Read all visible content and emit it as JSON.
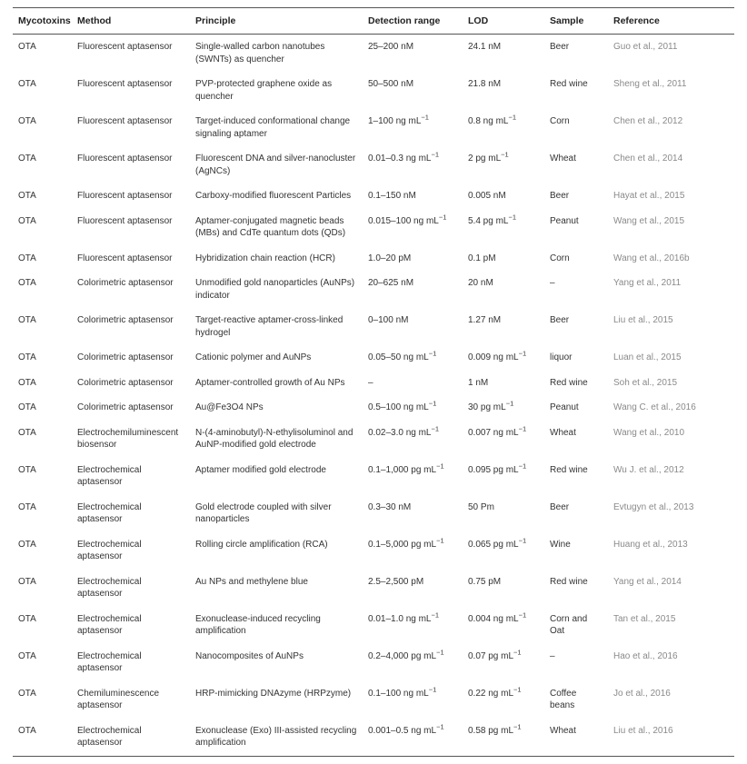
{
  "table": {
    "columns": [
      "Mycotoxins",
      "Method",
      "Principle",
      "Detection range",
      "LOD",
      "Sample",
      "Reference"
    ],
    "rows": [
      {
        "mycotoxin": "OTA",
        "method": "Fluorescent aptasensor",
        "principle": "Single-walled carbon nanotubes (SWNTs) as quencher",
        "range": "25–200 nM",
        "lod": "24.1 nM",
        "sample": "Beer",
        "ref": "Guo et al., 2011"
      },
      {
        "mycotoxin": "OTA",
        "method": "Fluorescent aptasensor",
        "principle": "PVP-protected graphene oxide as quencher",
        "range": "50–500 nM",
        "lod": "21.8 nM",
        "sample": "Red wine",
        "ref": "Sheng et al., 2011"
      },
      {
        "mycotoxin": "OTA",
        "method": "Fluorescent aptasensor",
        "principle": "Target-induced conformational change signaling aptamer",
        "range": "1–100 ng mL⁻¹",
        "lod": "0.8 ng mL⁻¹",
        "sample": "Corn",
        "ref": "Chen et al., 2012"
      },
      {
        "mycotoxin": "OTA",
        "method": "Fluorescent aptasensor",
        "principle": "Fluorescent DNA and silver-nanocluster (AgNCs)",
        "range": "0.01–0.3 ng mL⁻¹",
        "lod": "2 pg mL⁻¹",
        "sample": "Wheat",
        "ref": "Chen et al., 2014"
      },
      {
        "mycotoxin": "OTA",
        "method": "Fluorescent aptasensor",
        "principle": "Carboxy-modified fluorescent Particles",
        "range": "0.1–150 nM",
        "lod": "0.005 nM",
        "sample": "Beer",
        "ref": "Hayat et al., 2015"
      },
      {
        "mycotoxin": "OTA",
        "method": "Fluorescent aptasensor",
        "principle": "Aptamer-conjugated magnetic beads (MBs) and CdTe quantum dots (QDs)",
        "range": "0.015–100 ng mL⁻¹",
        "lod": "5.4 pg mL⁻¹",
        "sample": "Peanut",
        "ref": "Wang et al., 2015"
      },
      {
        "mycotoxin": "OTA",
        "method": "Fluorescent aptasensor",
        "principle": "Hybridization chain reaction (HCR)",
        "range": "1.0–20 pM",
        "lod": "0.1 pM",
        "sample": "Corn",
        "ref": "Wang et al., 2016b"
      },
      {
        "mycotoxin": "OTA",
        "method": "Colorimetric aptasensor",
        "principle": "Unmodified gold nanoparticles (AuNPs) indicator",
        "range": "20–625 nM",
        "lod": "20 nM",
        "sample": "–",
        "ref": "Yang et al., 2011"
      },
      {
        "mycotoxin": "OTA",
        "method": "Colorimetric aptasensor",
        "principle": "Target-reactive aptamer-cross-linked hydrogel",
        "range": "0–100 nM",
        "lod": "1.27 nM",
        "sample": "Beer",
        "ref": "Liu et al., 2015"
      },
      {
        "mycotoxin": "OTA",
        "method": "Colorimetric aptasensor",
        "principle": "Cationic polymer and AuNPs",
        "range": "0.05–50 ng mL⁻¹",
        "lod": "0.009 ng mL⁻¹",
        "sample": "liquor",
        "ref": "Luan et al., 2015"
      },
      {
        "mycotoxin": "OTA",
        "method": "Colorimetric aptasensor",
        "principle": "Aptamer-controlled growth of Au NPs",
        "range": "–",
        "lod": "1 nM",
        "sample": "Red wine",
        "ref": "Soh et al., 2015"
      },
      {
        "mycotoxin": "OTA",
        "method": "Colorimetric aptasensor",
        "principle": "Au@Fe3O4 NPs",
        "range": "0.5–100 ng mL⁻¹",
        "lod": "30 pg mL⁻¹",
        "sample": "Peanut",
        "ref": "Wang C. et al., 2016"
      },
      {
        "mycotoxin": "OTA",
        "method": "Electrochemiluminescent biosensor",
        "principle": "N-(4-aminobutyl)-N-ethylisoluminol and AuNP-modified gold electrode",
        "range": "0.02–3.0 ng mL⁻¹",
        "lod": "0.007 ng mL⁻¹",
        "sample": "Wheat",
        "ref": "Wang et al., 2010"
      },
      {
        "mycotoxin": "OTA",
        "method": "Electrochemical aptasensor",
        "principle": "Aptamer modified gold electrode",
        "range": "0.1–1,000 pg mL⁻¹",
        "lod": "0.095 pg mL⁻¹",
        "sample": "Red wine",
        "ref": "Wu J. et al., 2012"
      },
      {
        "mycotoxin": "OTA",
        "method": "Electrochemical aptasensor",
        "principle": "Gold electrode coupled with silver nanoparticles",
        "range": "0.3–30 nM",
        "lod": "50 Pm",
        "sample": "Beer",
        "ref": "Evtugyn et al., 2013"
      },
      {
        "mycotoxin": "OTA",
        "method": "Electrochemical aptasensor",
        "principle": "Rolling circle amplification (RCA)",
        "range": "0.1–5,000 pg mL⁻¹",
        "lod": "0.065 pg mL⁻¹",
        "sample": "Wine",
        "ref": "Huang et al., 2013"
      },
      {
        "mycotoxin": "OTA",
        "method": "Electrochemical aptasensor",
        "principle": "Au NPs and methylene blue",
        "range": "2.5–2,500 pM",
        "lod": "0.75 pM",
        "sample": "Red wine",
        "ref": "Yang et al., 2014"
      },
      {
        "mycotoxin": "OTA",
        "method": "Electrochemical aptasensor",
        "principle": "Exonuclease-induced recycling amplification",
        "range": "0.01–1.0 ng mL⁻¹",
        "lod": "0.004 ng mL⁻¹",
        "sample": "Corn and Oat",
        "ref": "Tan et al., 2015"
      },
      {
        "mycotoxin": "OTA",
        "method": "Electrochemical aptasensor",
        "principle": "Nanocomposites of AuNPs",
        "range": "0.2–4,000 pg mL⁻¹",
        "lod": "0.07 pg mL⁻¹",
        "sample": "–",
        "ref": "Hao et al., 2016"
      },
      {
        "mycotoxin": "OTA",
        "method": "Chemiluminescence aptasensor",
        "principle": "HRP-mimicking DNAzyme (HRPzyme)",
        "range": "0.1–100 ng mL⁻¹",
        "lod": "0.22 ng mL⁻¹",
        "sample": "Coffee beans",
        "ref": "Jo et al., 2016"
      },
      {
        "mycotoxin": "OTA",
        "method": "Electrochemical aptasensor",
        "principle": "Exonuclease (Exo) III-assisted recycling amplification",
        "range": "0.001–0.5 ng mL⁻¹",
        "lod": "0.58 pg mL⁻¹",
        "sample": "Wheat",
        "ref": "Liu et al., 2016"
      }
    ]
  }
}
